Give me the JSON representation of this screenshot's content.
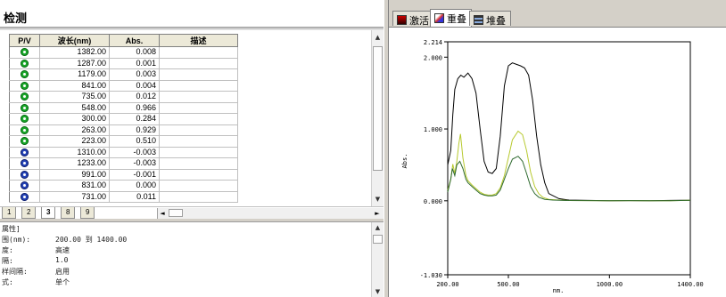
{
  "panel": {
    "title": "检测"
  },
  "table": {
    "columns": [
      "P/V",
      "波长(nm)",
      "Abs.",
      "描述"
    ],
    "rows": [
      {
        "type": "peak",
        "wavelength": "1382.00",
        "abs": "0.008",
        "desc": ""
      },
      {
        "type": "peak",
        "wavelength": "1287.00",
        "abs": "0.001",
        "desc": ""
      },
      {
        "type": "peak",
        "wavelength": "1179.00",
        "abs": "0.003",
        "desc": ""
      },
      {
        "type": "peak",
        "wavelength": "841.00",
        "abs": "0.004",
        "desc": ""
      },
      {
        "type": "peak",
        "wavelength": "735.00",
        "abs": "0.012",
        "desc": ""
      },
      {
        "type": "peak",
        "wavelength": "548.00",
        "abs": "0.966",
        "desc": ""
      },
      {
        "type": "peak",
        "wavelength": "300.00",
        "abs": "0.284",
        "desc": ""
      },
      {
        "type": "peak",
        "wavelength": "263.00",
        "abs": "0.929",
        "desc": ""
      },
      {
        "type": "peak",
        "wavelength": "223.00",
        "abs": "0.510",
        "desc": ""
      },
      {
        "type": "valley",
        "wavelength": "1310.00",
        "abs": "-0.003",
        "desc": ""
      },
      {
        "type": "valley",
        "wavelength": "1233.00",
        "abs": "-0.003",
        "desc": ""
      },
      {
        "type": "valley",
        "wavelength": "991.00",
        "abs": "-0.001",
        "desc": ""
      },
      {
        "type": "valley",
        "wavelength": "831.00",
        "abs": "0.000",
        "desc": ""
      },
      {
        "type": "valley",
        "wavelength": "731.00",
        "abs": "0.011",
        "desc": ""
      }
    ]
  },
  "sheet_tabs": [
    "1",
    "2",
    "3",
    "8",
    "9"
  ],
  "active_sheet_tab": "3",
  "info": {
    "heading": "属性]",
    "lines": [
      {
        "label": "围(nm):",
        "value": "200.00 到 1400.00"
      },
      {
        "label": "度:",
        "value": "高速"
      },
      {
        "label": "隔:",
        "value": "1.0"
      },
      {
        "label": "样间隔:",
        "value": "启用"
      },
      {
        "label": "式:",
        "value": "单个"
      }
    ]
  },
  "view_tabs": [
    {
      "label": "激活",
      "icon": "activate-view-icon",
      "active": false
    },
    {
      "label": "重叠",
      "icon": "overlay-view-icon",
      "active": true
    },
    {
      "label": "堆叠",
      "icon": "stack-view-icon",
      "active": false
    }
  ],
  "chart_data": {
    "type": "line",
    "xlabel": "nm.",
    "ylabel": "Abs.",
    "xlim": [
      200,
      1400
    ],
    "ylim": [
      -1.03,
      2.214
    ],
    "x_ticks": [
      "200.00",
      "500.00",
      "1000.00",
      "1400.00"
    ],
    "y_ticks": [
      "2.214",
      "2.000",
      "1.000",
      "0.000",
      "-1.030"
    ],
    "grid": false,
    "series": [
      {
        "color": "#000000",
        "x": [
          200,
          215,
          225,
          235,
          250,
          265,
          280,
          300,
          320,
          340,
          360,
          380,
          400,
          420,
          440,
          460,
          480,
          500,
          520,
          540,
          560,
          580,
          600,
          620,
          640,
          660,
          680,
          700,
          750,
          800,
          900,
          1000,
          1100,
          1200,
          1300,
          1400
        ],
        "y": [
          0.5,
          0.7,
          1.2,
          1.55,
          1.7,
          1.75,
          1.72,
          1.78,
          1.7,
          1.5,
          1.0,
          0.55,
          0.4,
          0.38,
          0.45,
          0.9,
          1.6,
          1.88,
          1.92,
          1.9,
          1.88,
          1.85,
          1.75,
          1.4,
          0.9,
          0.5,
          0.25,
          0.1,
          0.03,
          0.01,
          0.005,
          0.002,
          0.003,
          0.001,
          0.005,
          0.008
        ]
      },
      {
        "color": "#b7c92e",
        "x": [
          200,
          215,
          225,
          235,
          245,
          255,
          263,
          275,
          290,
          300,
          320,
          340,
          360,
          380,
          400,
          420,
          440,
          460,
          480,
          500,
          520,
          548,
          570,
          590,
          610,
          630,
          650,
          670,
          700,
          735,
          800,
          900,
          1000,
          1100,
          1200,
          1300,
          1400
        ],
        "y": [
          0.15,
          0.3,
          0.51,
          0.38,
          0.55,
          0.8,
          0.93,
          0.6,
          0.35,
          0.28,
          0.22,
          0.17,
          0.12,
          0.09,
          0.08,
          0.08,
          0.1,
          0.18,
          0.35,
          0.6,
          0.85,
          0.97,
          0.92,
          0.7,
          0.4,
          0.2,
          0.1,
          0.05,
          0.02,
          0.012,
          0.004,
          0.003,
          0.002,
          0.003,
          0.001,
          0.001,
          0.008
        ]
      },
      {
        "color": "#2f6a2f",
        "x": [
          200,
          215,
          223,
          235,
          245,
          260,
          275,
          290,
          300,
          320,
          340,
          360,
          380,
          400,
          420,
          440,
          460,
          480,
          500,
          520,
          548,
          570,
          590,
          610,
          630,
          650,
          680,
          720,
          800,
          900,
          1000,
          1100,
          1200,
          1300,
          1400
        ],
        "y": [
          0.12,
          0.3,
          0.45,
          0.35,
          0.5,
          0.55,
          0.45,
          0.3,
          0.25,
          0.2,
          0.15,
          0.1,
          0.08,
          0.07,
          0.07,
          0.08,
          0.15,
          0.3,
          0.45,
          0.58,
          0.62,
          0.55,
          0.38,
          0.2,
          0.1,
          0.05,
          0.02,
          0.01,
          0.004,
          0.003,
          0.002,
          0.003,
          0.001,
          0.001,
          0.008
        ]
      }
    ]
  }
}
